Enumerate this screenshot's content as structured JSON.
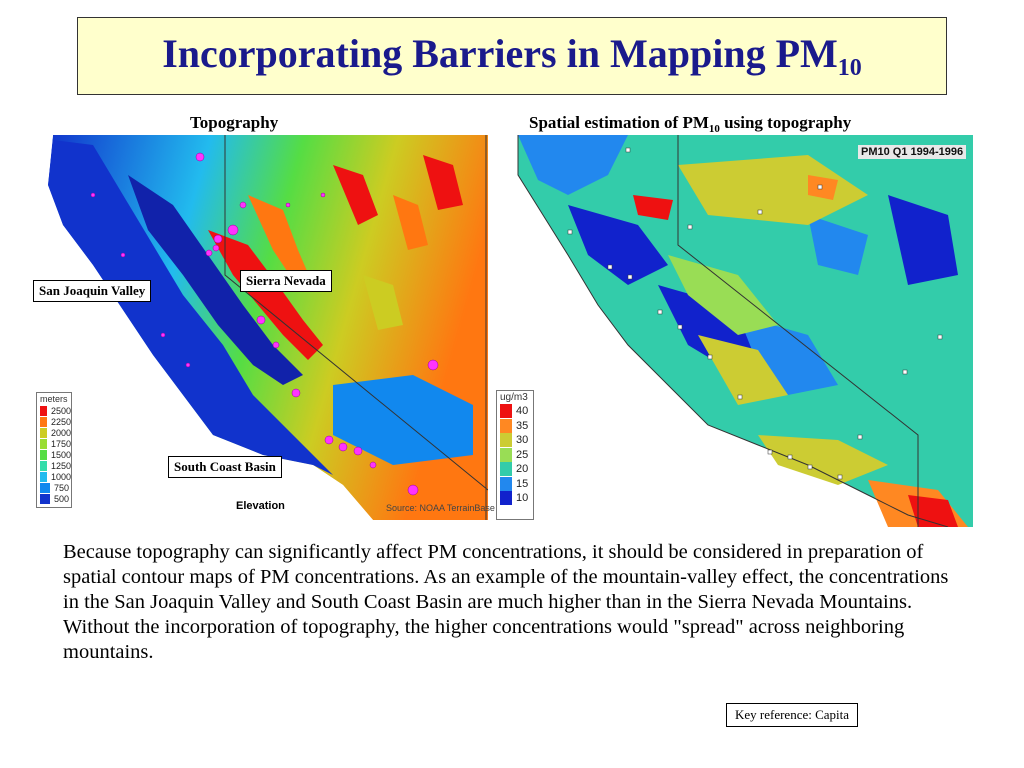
{
  "title": {
    "main": "Incorporating Barriers in Mapping PM",
    "sub": "10"
  },
  "left_map": {
    "caption": "Topography",
    "labels": {
      "san_joaquin": "San Joaquin Valley",
      "sierra_nevada": "Sierra Nevada",
      "south_coast": "South Coast Basin"
    },
    "legend_unit": "meters",
    "legend_items": [
      {
        "value": "2500",
        "color": "#ee1111"
      },
      {
        "value": "2250",
        "color": "#ff7711"
      },
      {
        "value": "2000",
        "color": "#cccc22"
      },
      {
        "value": "1750",
        "color": "#99dd33"
      },
      {
        "value": "1500",
        "color": "#55dd44"
      },
      {
        "value": "1250",
        "color": "#33ddaa"
      },
      {
        "value": "1000",
        "color": "#22bbee"
      },
      {
        "value": "750",
        "color": "#1188ee"
      },
      {
        "value": "500",
        "color": "#1133cc"
      }
    ],
    "footer_label": "Elevation",
    "source": "Source: NOAA TerrainBase"
  },
  "right_map": {
    "caption_pre": "Spatial estimation of PM",
    "caption_sub": "10",
    "caption_post": " using topography",
    "map_label": "PM10 Q1 1994-1996",
    "legend_unit": "ug/m3",
    "legend_items": [
      {
        "value": "40",
        "color": "#ee1111"
      },
      {
        "value": "35",
        "color": "#ff8822"
      },
      {
        "value": "30",
        "color": "#cccc33"
      },
      {
        "value": "25",
        "color": "#99dd55"
      },
      {
        "value": "20",
        "color": "#33ccaa"
      },
      {
        "value": "15",
        "color": "#2288ee"
      },
      {
        "value": "10",
        "color": "#1122cc"
      }
    ]
  },
  "body_text": "Because topography can significantly affect PM concentrations, it should be considered in preparation of spatial contour maps of PM concentrations.  As an example of the mountain-valley effect, the concentrations in the San Joaquin Valley and South Coast Basin are much higher than in the Sierra Nevada Mountains.  Without the incorporation of topography, the higher concentrations would \"spread\" across neighboring mountains.",
  "key_reference": "Key reference: Capita"
}
